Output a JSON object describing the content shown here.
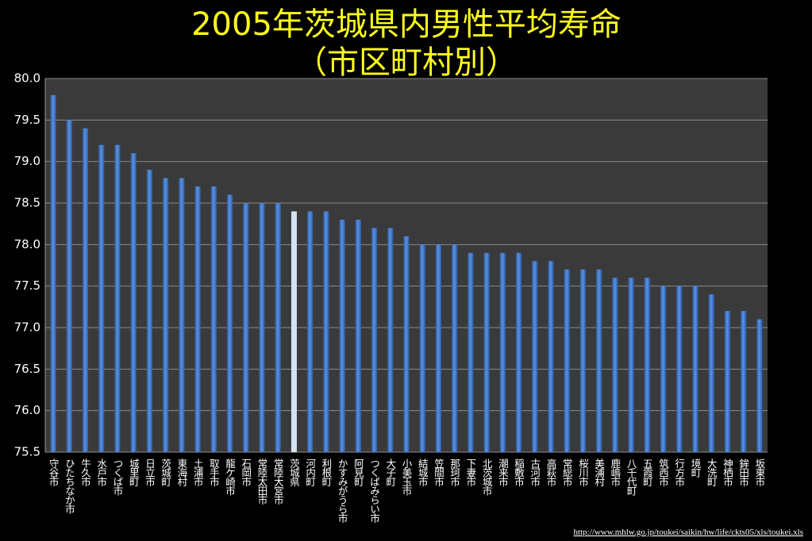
{
  "chart_data": {
    "type": "bar",
    "title": "2005年茨城県内男性平均寿命",
    "subtitle": "（市区町村別）",
    "source": "http://www.mhlw.go.jp/toukei/saikin/hw/life/ckts05/xls/toukei.xls",
    "categories": [
      "守谷市",
      "ひたちなか市",
      "牛久市",
      "水戸市",
      "つくば市",
      "城里町",
      "日立市",
      "茨城町",
      "東海村",
      "土浦市",
      "取手市",
      "龍ケ崎市",
      "石岡市",
      "常陸太田市",
      "常陸大宮市",
      "茨城県",
      "河内町",
      "利根町",
      "かすみがうら市",
      "阿見町",
      "つくばみらい市",
      "大子町",
      "小美玉市",
      "結城市",
      "笠間市",
      "那珂市",
      "下妻市",
      "北茨城市",
      "潮来市",
      "稲敷市",
      "古河市",
      "高萩市",
      "常総市",
      "桜川市",
      "美浦村",
      "鹿嶋市",
      "八千代町",
      "五霞町",
      "筑西市",
      "行方市",
      "境町",
      "大洗町",
      "神栖市",
      "鉾田市",
      "坂東市"
    ],
    "values": [
      79.8,
      79.5,
      79.4,
      79.2,
      79.2,
      79.1,
      78.9,
      78.8,
      78.8,
      78.7,
      78.7,
      78.6,
      78.5,
      78.5,
      78.5,
      78.4,
      78.4,
      78.4,
      78.3,
      78.3,
      78.2,
      78.2,
      78.1,
      78.0,
      78.0,
      78.0,
      77.9,
      77.9,
      77.9,
      77.9,
      77.8,
      77.8,
      77.7,
      77.7,
      77.7,
      77.6,
      77.6,
      77.6,
      77.5,
      77.5,
      77.5,
      77.4,
      77.2,
      77.2,
      77.1
    ],
    "color": "#3f78cc",
    "highlight_index": 15,
    "highlight_color": "#d4e2f5",
    "ylim": [
      75.5,
      80.0
    ],
    "yticks": [
      75.5,
      {
        "value": 76,
        "label": "76.0"
      },
      76.5,
      {
        "value": 77,
        "label": "77.0"
      },
      77.5,
      {
        "value": 78,
        "label": "78.0"
      },
      78.5,
      {
        "value": 79,
        "label": "79.0"
      },
      79.5,
      {
        "value": 80,
        "label": "80.0"
      }
    ],
    "grid": true
  }
}
